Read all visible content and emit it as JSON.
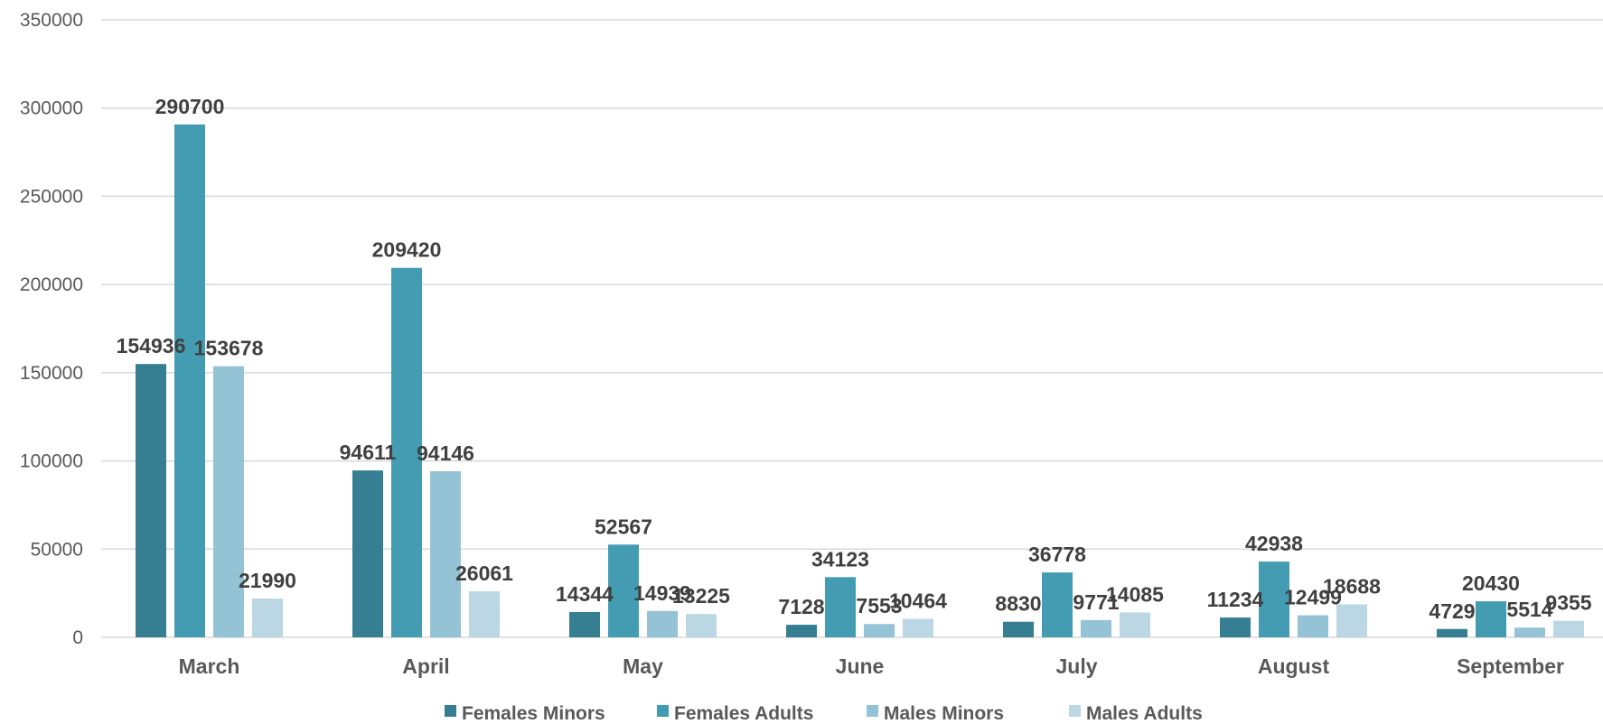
{
  "chart_data": {
    "type": "bar",
    "title": "",
    "xlabel": "",
    "ylabel": "",
    "categories": [
      "March",
      "April",
      "May",
      "June",
      "July",
      "August",
      "September"
    ],
    "ylim": [
      0,
      350000
    ],
    "yticks": [
      "0",
      "50000",
      "100000",
      "150000",
      "200000",
      "250000",
      "300000",
      "350000"
    ],
    "grid": true,
    "legend_position": "bottom",
    "series": [
      {
        "name": "Females Minors",
        "color": "#367f93",
        "values": [
          154936,
          94611,
          14344,
          7128,
          8830,
          11234,
          4729
        ]
      },
      {
        "name": "Females Adults",
        "color": "#439cb2",
        "values": [
          290700,
          209420,
          52567,
          34123,
          36778,
          42938,
          20430
        ]
      },
      {
        "name": "Males Minors",
        "color": "#94c3d5",
        "values": [
          153678,
          94146,
          14939,
          7553,
          9771,
          12499,
          5514
        ]
      },
      {
        "name": "Males Adults",
        "color": "#bad7e3",
        "values": [
          21990,
          26061,
          13225,
          10464,
          14085,
          18688,
          9355
        ]
      }
    ]
  }
}
